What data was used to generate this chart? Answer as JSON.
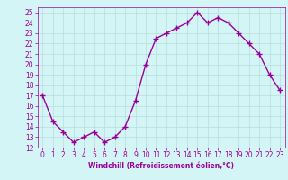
{
  "x": [
    0,
    1,
    2,
    3,
    4,
    5,
    6,
    7,
    8,
    9,
    10,
    11,
    12,
    13,
    14,
    15,
    16,
    17,
    18,
    19,
    20,
    21,
    22,
    23
  ],
  "y": [
    17.0,
    14.5,
    13.5,
    12.5,
    13.0,
    13.5,
    12.5,
    13.0,
    14.0,
    16.5,
    20.0,
    22.5,
    23.0,
    23.5,
    24.0,
    25.0,
    24.0,
    24.5,
    24.0,
    23.0,
    22.0,
    21.0,
    19.0,
    17.5
  ],
  "line_color": "#990099",
  "marker": "+",
  "marker_size": 4,
  "bg_color": "#d4f5f5",
  "grid_color": "#b8dede",
  "xlabel": "Windchill (Refroidissement éolien,°C)",
  "xlabel_color": "#990099",
  "tick_color": "#990099",
  "ylim": [
    12,
    25.5
  ],
  "xlim": [
    -0.5,
    23.5
  ],
  "yticks": [
    12,
    13,
    14,
    15,
    16,
    17,
    18,
    19,
    20,
    21,
    22,
    23,
    24,
    25
  ],
  "xticks": [
    0,
    1,
    2,
    3,
    4,
    5,
    6,
    7,
    8,
    9,
    10,
    11,
    12,
    13,
    14,
    15,
    16,
    17,
    18,
    19,
    20,
    21,
    22,
    23
  ],
  "line_width": 1.0,
  "tick_fontsize": 5.5,
  "xlabel_fontsize": 5.5
}
